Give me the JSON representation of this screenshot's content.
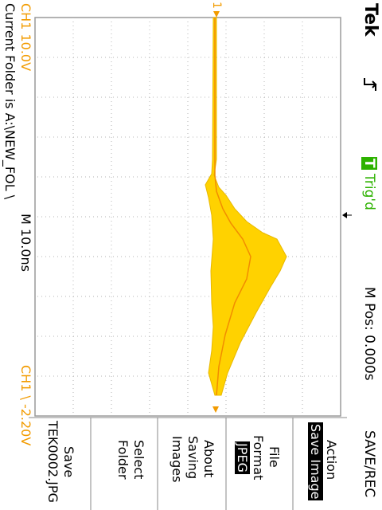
{
  "header": {
    "brand": "Tek",
    "trigger_status_badge": "T",
    "trigger_status": "Trig'd",
    "position_readout": "M Pos: 0.000s"
  },
  "scope": {
    "channel_scale": "CH1  10.0V",
    "timebase": "M 10.0ns",
    "trigger_readout": "CH1  \\  -2.20V",
    "channel_marker": "1",
    "colors": {
      "trace": "#ffd200",
      "trace_edge": "#e8b800",
      "trace_mean": "#f28c00",
      "label": "#f29b00",
      "trig": "#2db200"
    }
  },
  "status_bar": {
    "folder": "Current Folder is A:\\NEW_FOL \\"
  },
  "menu": {
    "title": "SAVE/REC",
    "action_label": "Action",
    "action_value": "Save Image",
    "file_format_line1": "File",
    "file_format_line2": "Format",
    "file_format_value": "JPEG",
    "about_line1": "About",
    "about_line2": "Saving",
    "about_line3": "Images",
    "select_line1": "Select",
    "select_line2": "Folder",
    "save_line1": "Save",
    "save_line2": "TEK0002.JPG"
  }
}
